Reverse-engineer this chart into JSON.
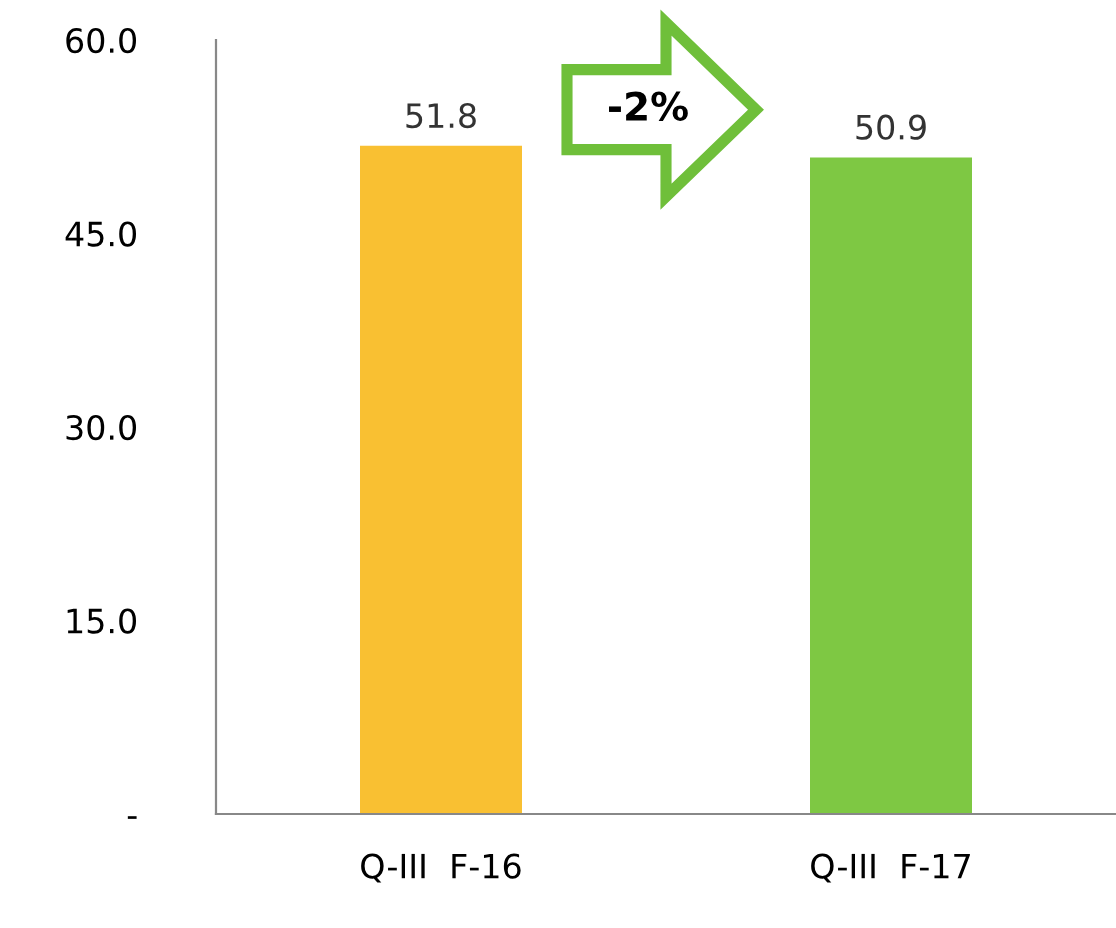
{
  "chart_data": {
    "type": "bar",
    "categories": [
      "Q-III  F-16",
      "Q-III  F-17"
    ],
    "values": [
      51.8,
      50.9
    ],
    "colors": [
      "#f9c032",
      "#7ec843"
    ],
    "ylim": [
      0,
      60
    ],
    "yticks": [
      {
        "value": 0,
        "label": "-"
      },
      {
        "value": 15,
        "label": "15.0"
      },
      {
        "value": 30,
        "label": "30.0"
      },
      {
        "value": 45,
        "label": "45.0"
      },
      {
        "value": 60,
        "label": "60.0"
      }
    ],
    "data_labels": true,
    "grid": false,
    "legend": false,
    "annotations": [
      "-2%"
    ]
  }
}
